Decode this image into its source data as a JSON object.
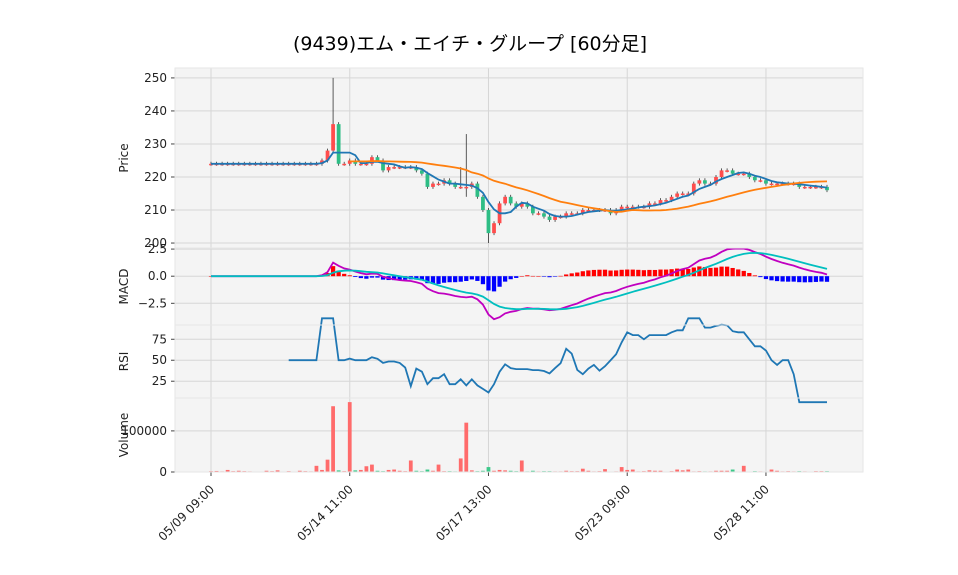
{
  "chart_data": {
    "type": "candlestick",
    "title": "(9439)エム・エイチ・グループ [60分足]",
    "x_ticks": [
      "05/09 09:00",
      "05/14 11:00",
      "05/17 13:00",
      "05/23 09:00",
      "05/28 11:00"
    ],
    "x_tick_index": [
      0,
      25,
      50,
      75,
      100
    ],
    "n_bars": 112,
    "panels": [
      {
        "id": "price",
        "ylabel": "Price",
        "ylim": [
          198.5,
          253
        ],
        "yticks": [
          200,
          210,
          220,
          230,
          240,
          250
        ]
      },
      {
        "id": "macd",
        "ylabel": "MACD",
        "ylim": [
          -4.5,
          2.6
        ],
        "yticks": [
          2.5,
          0.0,
          -2.5
        ],
        "ytick_labels": [
          "2.5",
          "0.0",
          "−2.5"
        ]
      },
      {
        "id": "rsi",
        "ylabel": "RSI",
        "ylim": [
          5,
          92
        ],
        "yticks": [
          75,
          50,
          25
        ]
      },
      {
        "id": "volume",
        "ylabel": "Volume",
        "ylim": [
          0,
          180000
        ],
        "yticks": [
          100000,
          0
        ]
      }
    ],
    "series": [
      {
        "name": "close",
        "panel": "price",
        "values": [
          224,
          224,
          224,
          224,
          224,
          224,
          224,
          224,
          224,
          224,
          224,
          224,
          224,
          224,
          224,
          224,
          224,
          224,
          224,
          224,
          225,
          228,
          236,
          224,
          224,
          225,
          224,
          224,
          224,
          226,
          225,
          222,
          223,
          223,
          223,
          223,
          223,
          222,
          221,
          217,
          218,
          218,
          219,
          218,
          217,
          217,
          217,
          218,
          214,
          210,
          203,
          206,
          212,
          214,
          212,
          211,
          212,
          211,
          209,
          209,
          208,
          207,
          208,
          208,
          209,
          209,
          209,
          210,
          210,
          210,
          210,
          210,
          209,
          210,
          211,
          211,
          211,
          211,
          211,
          212,
          212,
          213,
          213,
          214,
          215,
          215,
          215,
          218,
          219,
          218,
          218,
          220,
          222,
          222,
          221,
          221,
          221,
          220,
          219,
          219,
          218,
          218,
          218,
          218,
          218,
          218,
          217,
          217,
          217,
          217,
          217,
          216
        ]
      },
      {
        "name": "ma_short",
        "panel": "price",
        "color": "#1f77b4"
      },
      {
        "name": "ma_long",
        "panel": "price",
        "color": "#ff7f0e"
      },
      {
        "name": "macd",
        "panel": "macd",
        "color": "#c000c0"
      },
      {
        "name": "signal",
        "panel": "macd",
        "color": "#00bfbf"
      },
      {
        "name": "histogram",
        "panel": "macd",
        "up_color": "#ff0000",
        "down_color": "#0000ff"
      },
      {
        "name": "rsi",
        "panel": "rsi",
        "color": "#1f77b4"
      },
      {
        "name": "volume",
        "panel": "volume",
        "up_color": "#ff6b6b",
        "down_color": "#3cc98a",
        "values": [
          2000,
          2500,
          1500,
          5000,
          2000,
          3000,
          2000,
          1500,
          1000,
          1000,
          3000,
          2000,
          4000,
          1000,
          2000,
          1000,
          3000,
          2000,
          1500,
          15000,
          5000,
          30000,
          160000,
          4000,
          2000,
          170000,
          4000,
          5000,
          14000,
          18000,
          3000,
          2000,
          5000,
          6000,
          3000,
          2000,
          28000,
          3000,
          2000,
          6000,
          3000,
          18000,
          2000,
          2000,
          1500,
          33000,
          120000,
          4000,
          2000,
          3000,
          12000,
          3000,
          5000,
          4000,
          3000,
          2000,
          28000,
          1500,
          3000,
          1500,
          2000,
          2000,
          1500,
          1500,
          3000,
          2000,
          2000,
          8000,
          3000,
          1500,
          2000,
          7000,
          1000,
          1500,
          12000,
          5000,
          6000,
          1500,
          2000,
          4000,
          3000,
          3000,
          1000,
          2000,
          6000,
          4000,
          6000,
          1500,
          2000,
          1500,
          1500,
          3000,
          3000,
          3000,
          6000,
          1000,
          15000,
          1000,
          2000,
          1500,
          1000,
          6000,
          3000,
          1500,
          2000,
          1500,
          2000,
          1500,
          1000,
          2000,
          2000,
          2000
        ]
      }
    ],
    "grid": true
  }
}
